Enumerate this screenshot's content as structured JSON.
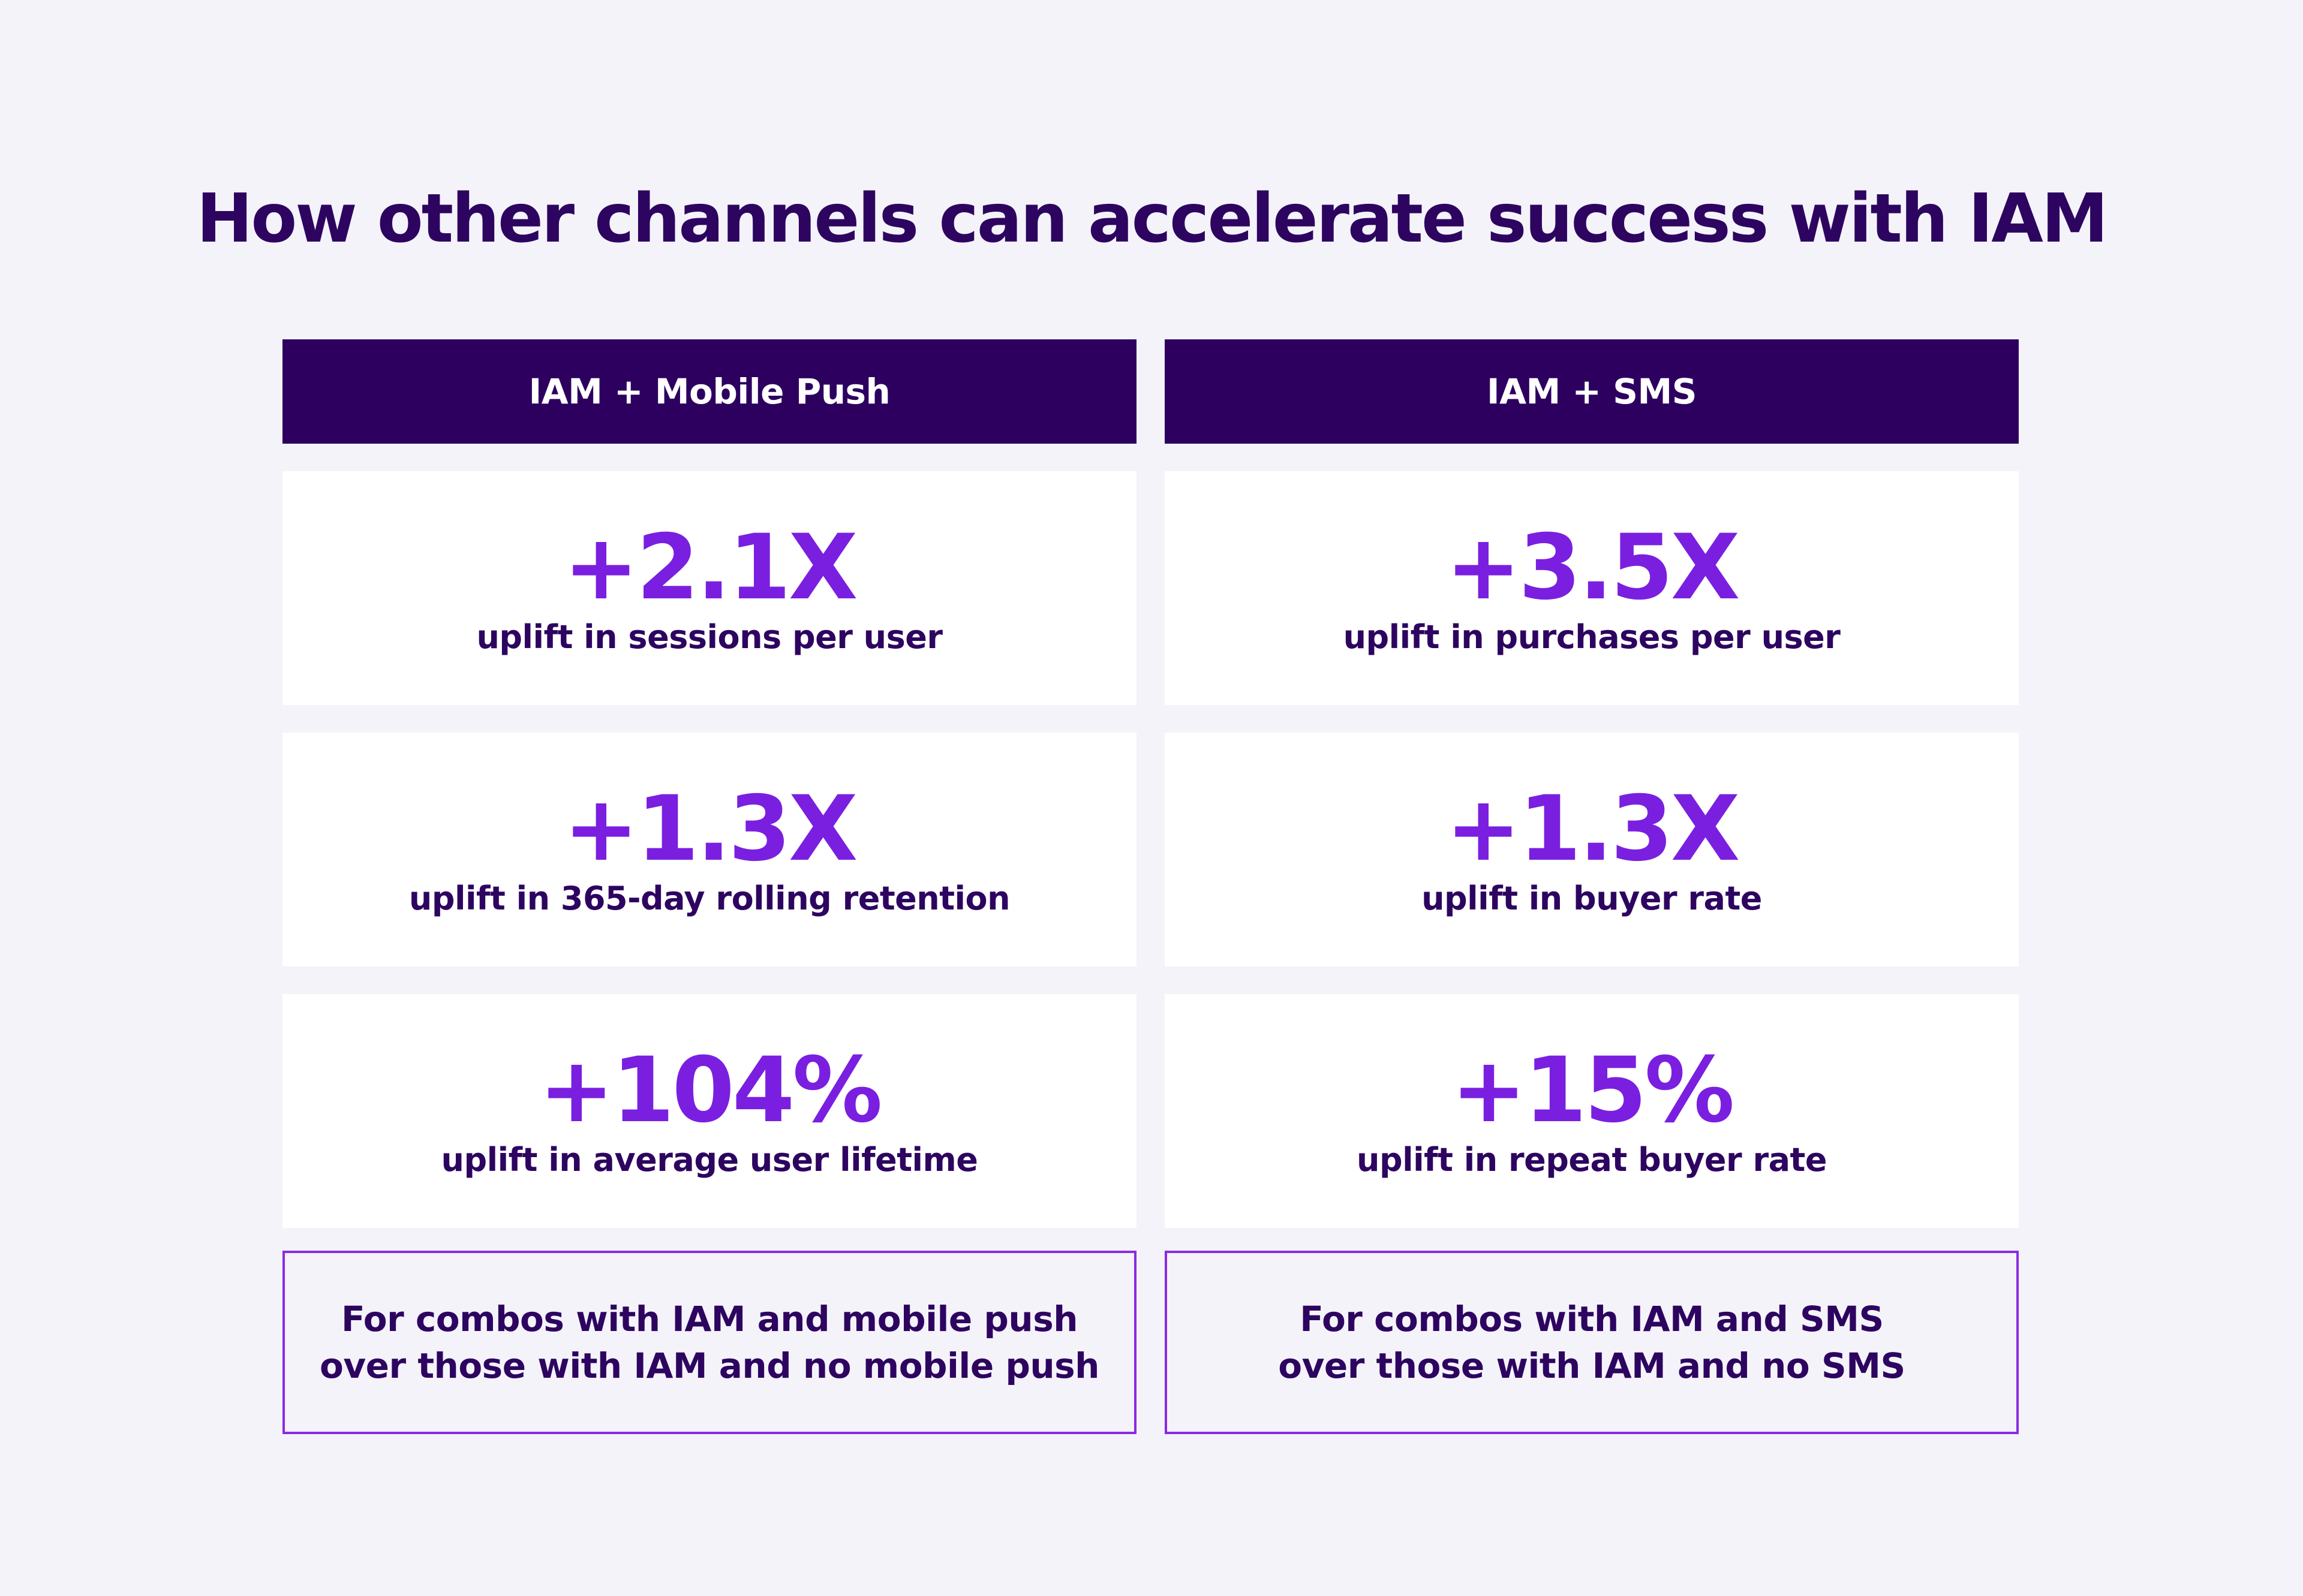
{
  "title": "How other channels can accelerate success with IAM",
  "columns": [
    {
      "header": "IAM + Mobile Push",
      "stats": [
        {
          "value": "+2.1X",
          "label": "uplift in sessions per user"
        },
        {
          "value": "+1.3X",
          "label": "uplift in 365-day rolling retention"
        },
        {
          "value": "+104%",
          "label": "uplift in average user lifetime"
        }
      ],
      "footnote": {
        "line1": "For combos with IAM and mobile push",
        "line2": "over those with IAM and no mobile push"
      }
    },
    {
      "header": "IAM + SMS",
      "stats": [
        {
          "value": "+3.5X",
          "label": "uplift in purchases per user"
        },
        {
          "value": "+1.3X",
          "label": "uplift in buyer rate"
        },
        {
          "value": "+15%",
          "label": "uplift in repeat buyer rate"
        }
      ],
      "footnote": {
        "line1": "For combos with IAM and SMS",
        "line2": "over those with IAM and no SMS"
      }
    }
  ],
  "colors": {
    "background": "#f4f3f9",
    "header_bg": "#2d0060",
    "accent": "#7a1fe0",
    "text": "#2d0560",
    "border": "#8a2be2"
  }
}
